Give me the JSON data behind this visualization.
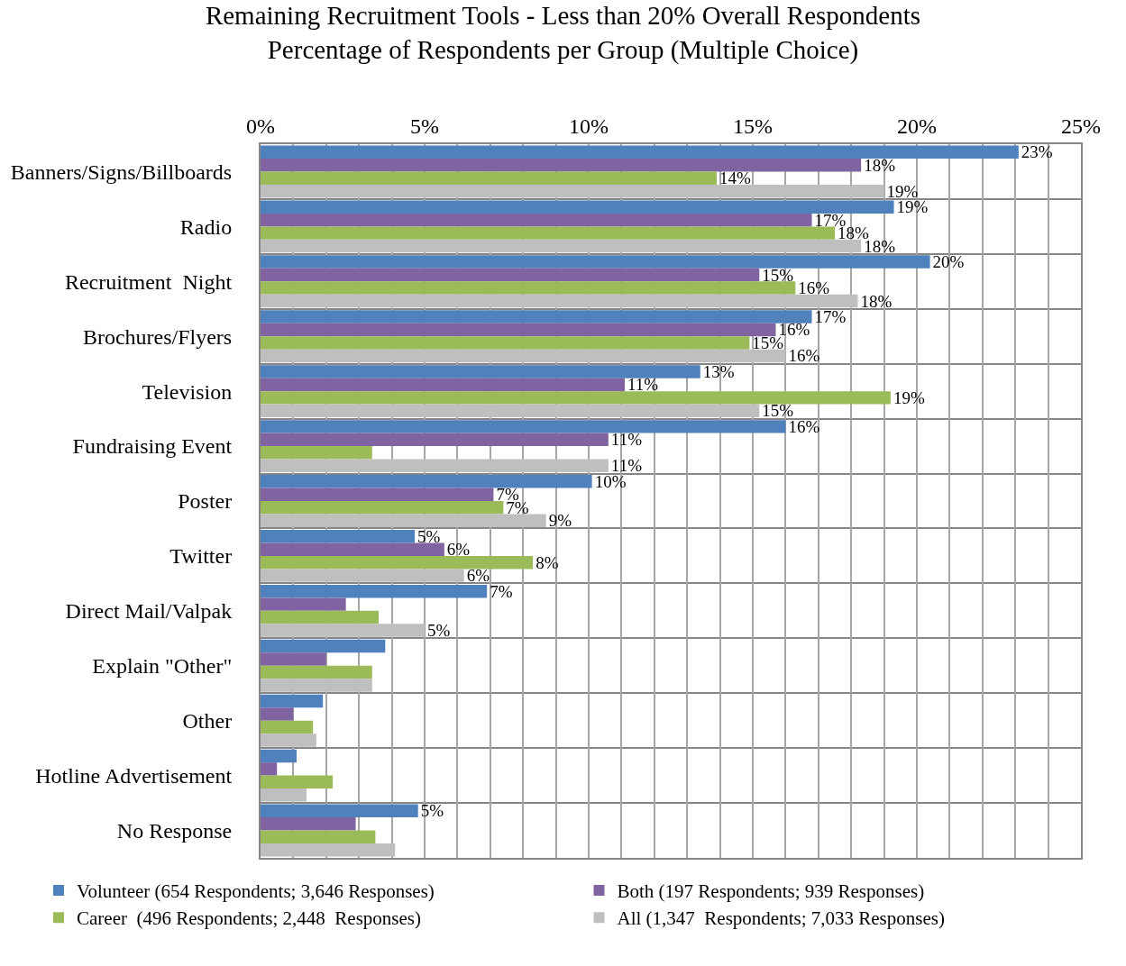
{
  "chart_data": {
    "type": "bar",
    "orientation": "horizontal",
    "title": "Remaining Recruitment Tools - Less than 20% Overall Respondents",
    "subtitle": "Percentage of Respondents per Group (Multiple Choice)",
    "categories": [
      "Banners/Signs/Billboards",
      "Radio",
      "Recruitment  Night",
      "Brochures/Flyers",
      "Television",
      "Fundraising Event",
      "Poster",
      "Twitter",
      "Direct Mail/Valpak",
      "Explain \"Other\"",
      "Other",
      "Hotline Advertisement",
      "No Response"
    ],
    "series": [
      {
        "name": "Volunteer (654 Respondents; 3,646 Responses)",
        "color": "#4f81bd",
        "values": [
          23.1,
          19.3,
          20.4,
          16.8,
          13.4,
          16.0,
          10.1,
          4.7,
          6.9,
          3.8,
          1.9,
          1.1,
          4.8
        ],
        "value_labels": [
          "23%",
          "19%",
          "20%",
          "17%",
          "13%",
          "16%",
          "10%",
          "5%",
          "7%",
          null,
          null,
          null,
          "5%"
        ]
      },
      {
        "name": "Both (197 Respondents; 939 Responses)",
        "color": "#8064a2",
        "values": [
          18.3,
          16.8,
          15.2,
          15.7,
          11.1,
          10.6,
          7.1,
          5.6,
          2.6,
          2.0,
          1.0,
          0.5,
          2.9
        ],
        "value_labels": [
          "18%",
          "17%",
          "15%",
          "16%",
          "11%",
          "11%",
          "7%",
          "6%",
          null,
          null,
          null,
          null,
          null
        ]
      },
      {
        "name": "Career  (496 Respondents; 2,448  Responses)",
        "color": "#9bbb59",
        "values": [
          13.9,
          17.5,
          16.3,
          14.9,
          19.2,
          3.4,
          7.4,
          8.3,
          3.6,
          3.4,
          1.6,
          2.2,
          3.5
        ],
        "value_labels": [
          "14%",
          "18%",
          "16%",
          "15%",
          "19%",
          null,
          "7%",
          "8%",
          null,
          null,
          null,
          null,
          null
        ]
      },
      {
        "name": "All (1,347  Respondents; 7,033 Responses)",
        "color": "#bfbfbf",
        "values": [
          19.0,
          18.3,
          18.2,
          16.0,
          15.2,
          10.6,
          8.7,
          6.2,
          5.0,
          3.4,
          1.7,
          1.4,
          4.1
        ],
        "value_labels": [
          "19%",
          "18%",
          "18%",
          "16%",
          "15%",
          "11%",
          "9%",
          "6%",
          "5%",
          null,
          null,
          null,
          null
        ]
      }
    ],
    "xlim": [
      0,
      25
    ],
    "xticks": [
      {
        "value": 0,
        "label": "0%"
      },
      {
        "value": 1,
        "label": null
      },
      {
        "value": 2,
        "label": null
      },
      {
        "value": 3,
        "label": null
      },
      {
        "value": 4,
        "label": null
      },
      {
        "value": 5,
        "label": "5%"
      },
      {
        "value": 6,
        "label": null
      },
      {
        "value": 7,
        "label": null
      },
      {
        "value": 8,
        "label": null
      },
      {
        "value": 9,
        "label": null
      },
      {
        "value": 10,
        "label": "10%"
      },
      {
        "value": 11,
        "label": null
      },
      {
        "value": 12,
        "label": null
      },
      {
        "value": 13,
        "label": null
      },
      {
        "value": 14,
        "label": null
      },
      {
        "value": 15,
        "label": "15%"
      },
      {
        "value": 16,
        "label": null
      },
      {
        "value": 17,
        "label": null
      },
      {
        "value": 18,
        "label": null
      },
      {
        "value": 19,
        "label": null
      },
      {
        "value": 20,
        "label": "20%"
      },
      {
        "value": 21,
        "label": null
      },
      {
        "value": 22,
        "label": null
      },
      {
        "value": 23,
        "label": null
      },
      {
        "value": 24,
        "label": null
      },
      {
        "value": 25,
        "label": "25%"
      }
    ],
    "grid": true,
    "legend": "bottom"
  }
}
